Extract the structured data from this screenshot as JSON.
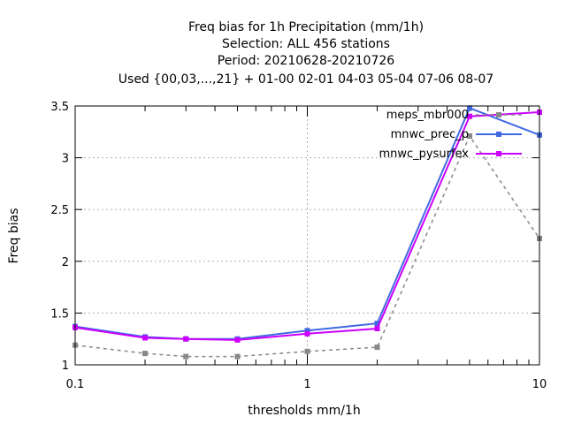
{
  "chart_data": {
    "type": "line",
    "title_lines": [
      "Freq bias  for 1h Precipitation (mm/1h)",
      "Selection: ALL    456 stations",
      "Period: 20210628-20210726",
      "Used {00,03,...,21} + 01-00 02-01 04-03 05-04 07-06 08-07"
    ],
    "xlabel": "thresholds mm/1h",
    "ylabel": "Freq bias",
    "xscale": "log",
    "xlim": [
      0.1,
      10
    ],
    "ylim": [
      1,
      3.5
    ],
    "xticks": [
      0.1,
      1,
      10
    ],
    "xtick_labels": [
      "0.1",
      "1",
      "10"
    ],
    "yticks": [
      1,
      1.5,
      2,
      2.5,
      3,
      3.5
    ],
    "ytick_labels": [
      "1",
      "1.5",
      "2",
      "2.5",
      "3",
      "3.5"
    ],
    "grid": true,
    "legend_position": "top-right",
    "x": [
      0.1,
      0.2,
      0.3,
      0.5,
      1,
      2,
      5,
      10
    ],
    "series": [
      {
        "name": "meps_mbr000",
        "color": "#888888",
        "dashed": true,
        "values": [
          1.19,
          1.11,
          1.08,
          1.08,
          1.13,
          1.17,
          3.21,
          2.22
        ]
      },
      {
        "name": "mnwc_prec_p",
        "color": "#4169e1",
        "dashed": false,
        "values": [
          1.37,
          1.27,
          1.25,
          1.25,
          1.33,
          1.4,
          3.48,
          3.22
        ]
      },
      {
        "name": "mnwc_pysurfex",
        "color": "#cc00ff",
        "dashed": false,
        "values": [
          1.36,
          1.26,
          1.25,
          1.24,
          1.3,
          1.35,
          3.4,
          3.44
        ]
      }
    ]
  }
}
